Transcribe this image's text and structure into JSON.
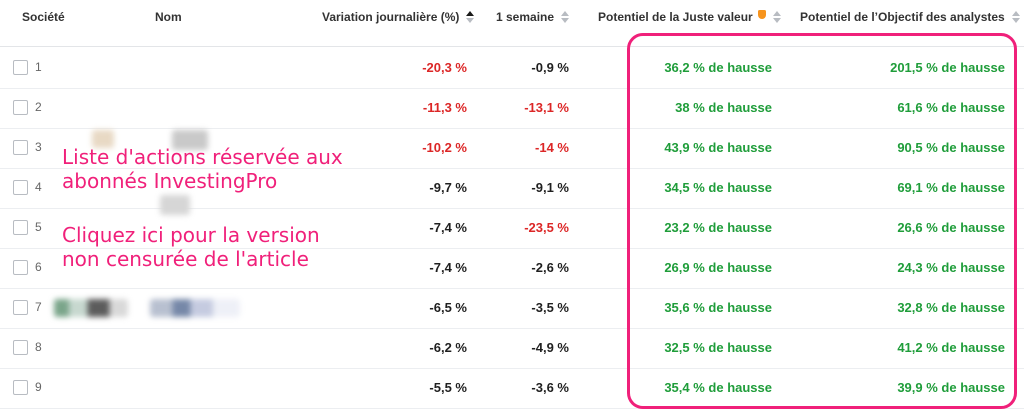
{
  "headers": {
    "societe": "Société",
    "nom": "Nom",
    "variation": "Variation journalière (%)",
    "semaine": "1 semaine",
    "juste_valeur": "Potentiel de la Juste valeur",
    "objectif": "Potentiel de l’Objectif des analystes"
  },
  "rows": [
    {
      "rank": "1",
      "variation": "-20,3 %",
      "semaine": "-0,9 %",
      "juste_valeur": "36,2 % de hausse",
      "objectif": "201,5 % de hausse"
    },
    {
      "rank": "2",
      "variation": "-11,3 %",
      "semaine": "-13,1 %",
      "juste_valeur": "38 % de hausse",
      "objectif": "61,6 % de hausse"
    },
    {
      "rank": "3",
      "variation": "-10,2 %",
      "semaine": "-14 %",
      "juste_valeur": "43,9 % de hausse",
      "objectif": "90,5 % de hausse"
    },
    {
      "rank": "4",
      "variation": "-9,7 %",
      "semaine": "-9,1 %",
      "juste_valeur": "34,5 % de hausse",
      "objectif": "69,1 % de hausse"
    },
    {
      "rank": "5",
      "variation": "-7,4 %",
      "semaine": "-23,5 %",
      "juste_valeur": "23,2 % de hausse",
      "objectif": "26,6 % de hausse"
    },
    {
      "rank": "6",
      "variation": "-7,4 %",
      "semaine": "-2,6 %",
      "juste_valeur": "26,9 % de hausse",
      "objectif": "24,3 % de hausse"
    },
    {
      "rank": "7",
      "variation": "-6,5 %",
      "semaine": "-3,5 %",
      "juste_valeur": "35,6 % de hausse",
      "objectif": "32,8 % de hausse"
    },
    {
      "rank": "8",
      "variation": "-6,2 %",
      "semaine": "-4,9 %",
      "juste_valeur": "32,5 % de hausse",
      "objectif": "41,2 % de hausse"
    },
    {
      "rank": "9",
      "variation": "-5,5 %",
      "semaine": "-3,6 %",
      "juste_valeur": "35,4 % de hausse",
      "objectif": "39,9 % de hausse"
    }
  ],
  "promo": {
    "line1": "Liste d'actions réservée aux",
    "line2": "abonnés InvestingPro",
    "line3": "Cliquez ici pour la version",
    "line4": "non censurée de l'article"
  },
  "colors": {
    "negative": "#dc2626",
    "neutral": "#1f1f1f",
    "positive": "#1f9d3a",
    "highlight": "#f0207a",
    "fair_value_icon": "#f7941d"
  }
}
